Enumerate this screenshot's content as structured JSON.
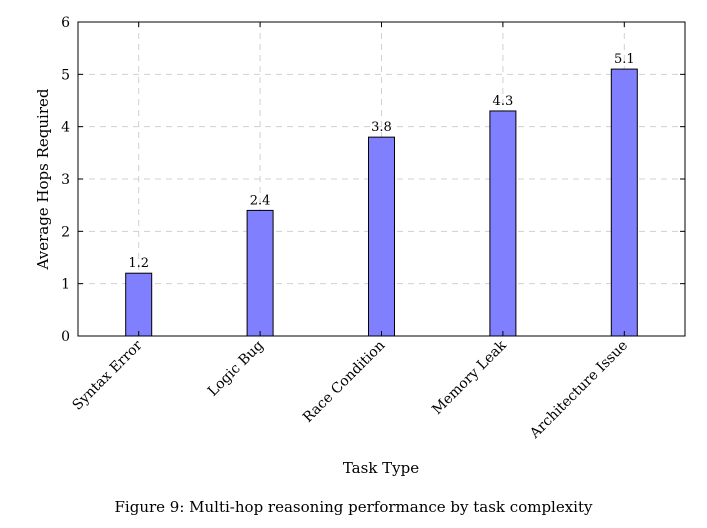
{
  "chart_data": {
    "type": "bar",
    "categories": [
      "Syntax Error",
      "Logic Bug",
      "Race Condition",
      "Memory Leak",
      "Architecture Issue"
    ],
    "values": [
      1.2,
      2.4,
      3.8,
      4.3,
      5.1
    ],
    "data_labels": [
      "1.2",
      "2.4",
      "3.8",
      "4.3",
      "5.1"
    ],
    "xlabel": "Task Type",
    "ylabel": "Average Hops Required",
    "ylim": [
      0,
      6
    ],
    "yticks": [
      0,
      1,
      2,
      3,
      4,
      5,
      6
    ],
    "grid": true,
    "bar_color": "#8080ff",
    "bar_edge_color": "#000000",
    "grid_color": "#d0d0d0"
  },
  "caption": "Figure 9: Multi-hop reasoning performance by task complexity"
}
